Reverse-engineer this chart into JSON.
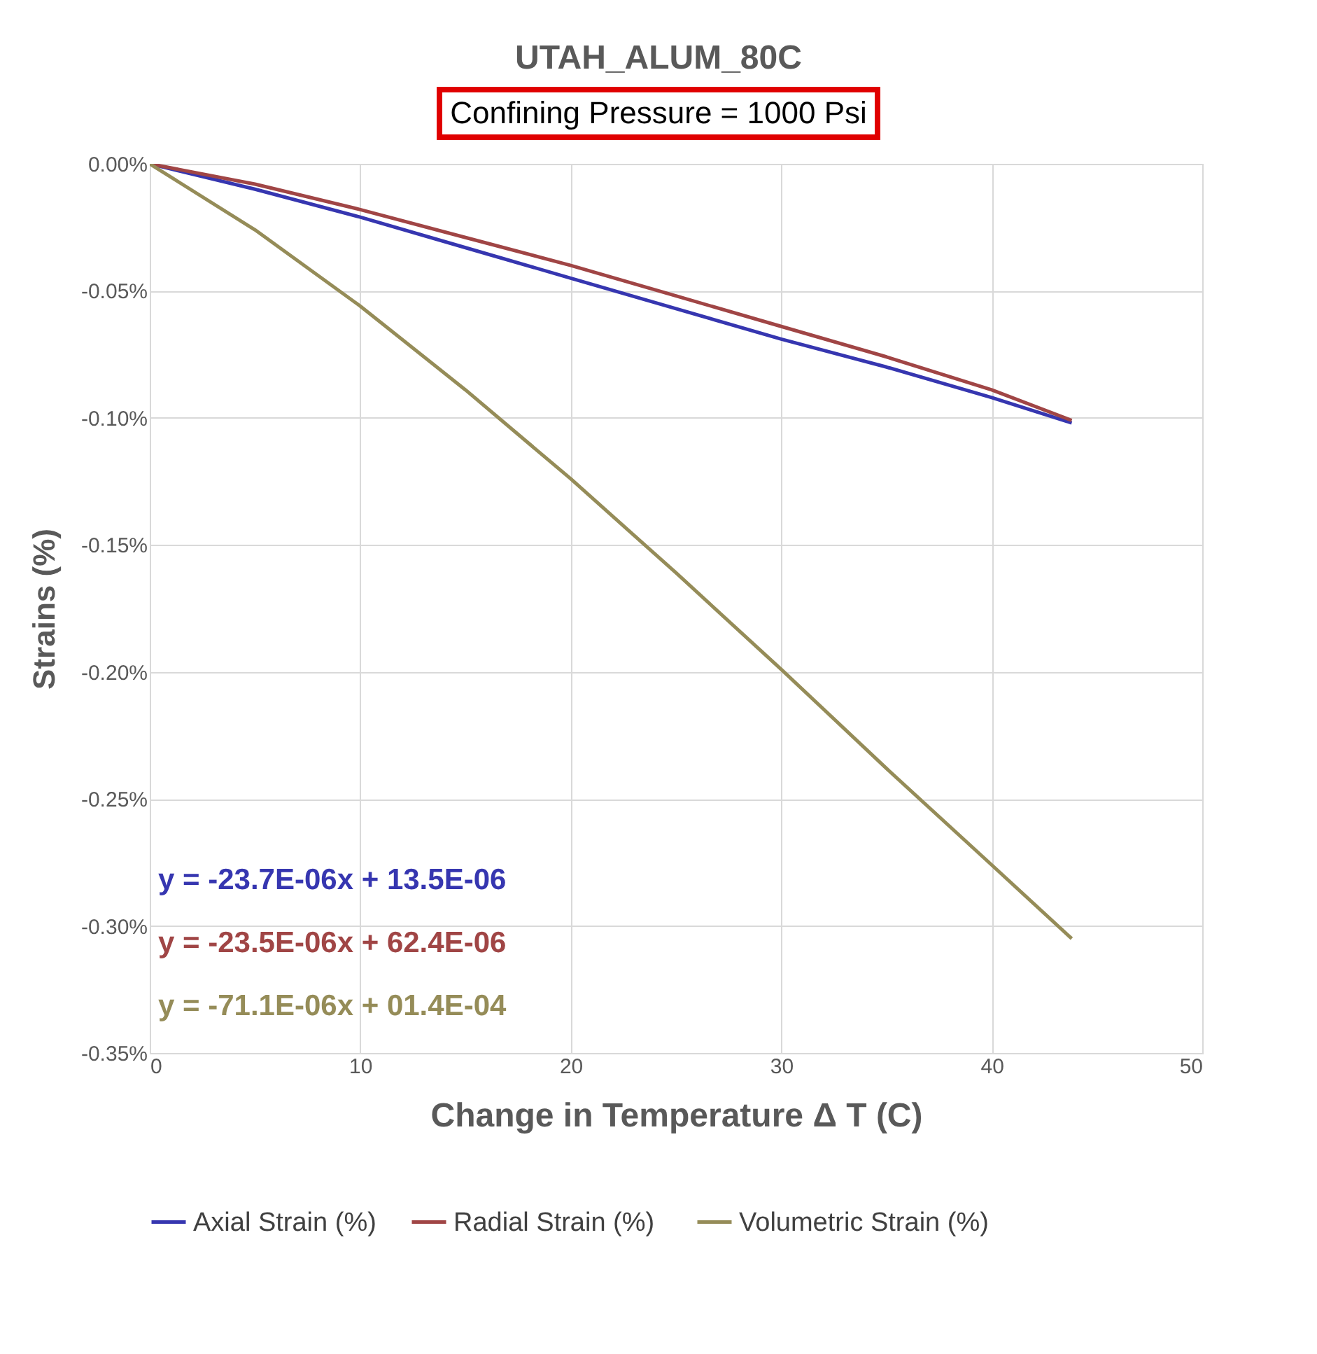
{
  "chart_data": {
    "type": "line",
    "title": "UTAH_ALUM_80C",
    "subtitle": "Confining Pressure = 1000 Psi",
    "xlabel": "Change in Temperature Δ T  (C)",
    "ylabel": "Strains (%)",
    "series": [
      {
        "name": "Axial Strain (%)",
        "color": "#3636b0",
        "x": [
          0,
          5,
          10,
          15,
          20,
          25,
          30,
          35,
          40,
          43.8
        ],
        "values": [
          0,
          -0.01,
          -0.021,
          -0.033,
          -0.045,
          -0.057,
          -0.069,
          -0.08,
          -0.092,
          -0.102
        ]
      },
      {
        "name": "Radial Strain  (%)",
        "color": "#a04545",
        "x": [
          0,
          5,
          10,
          15,
          20,
          25,
          30,
          35,
          40,
          43.8
        ],
        "values": [
          0,
          -0.008,
          -0.018,
          -0.029,
          -0.04,
          -0.052,
          -0.064,
          -0.076,
          -0.089,
          -0.101
        ]
      },
      {
        "name": "Volumetric Strain (%)",
        "color": "#958c58",
        "x": [
          0,
          5,
          10,
          15,
          20,
          25,
          30,
          35,
          40,
          43.8
        ],
        "values": [
          0,
          -0.026,
          -0.056,
          -0.089,
          -0.124,
          -0.161,
          -0.199,
          -0.238,
          -0.276,
          -0.305
        ]
      }
    ],
    "annotations": [
      "y = -23.7E-06x + 13.5E-06",
      "y = -23.5E-06x + 62.4E-06",
      "y = -71.1E-06x + 01.4E-04"
    ],
    "xlim": [
      0,
      50
    ],
    "xticks": [
      0,
      10,
      20,
      30,
      40,
      50
    ],
    "ylim": [
      -0.35,
      0
    ],
    "yticks": [
      {
        "value": 0,
        "label": "0.00%"
      },
      {
        "value": -0.05,
        "label": "-0.05%"
      },
      {
        "value": -0.1,
        "label": "-0.10%"
      },
      {
        "value": -0.15,
        "label": "-0.15%"
      },
      {
        "value": -0.2,
        "label": "-0.20%"
      },
      {
        "value": -0.25,
        "label": "-0.25%"
      },
      {
        "value": -0.3,
        "label": "-0.30%"
      },
      {
        "value": -0.35,
        "label": "-0.35%"
      }
    ],
    "grid": true,
    "legend": "bottom",
    "marker": "none",
    "line_style": "solid"
  }
}
